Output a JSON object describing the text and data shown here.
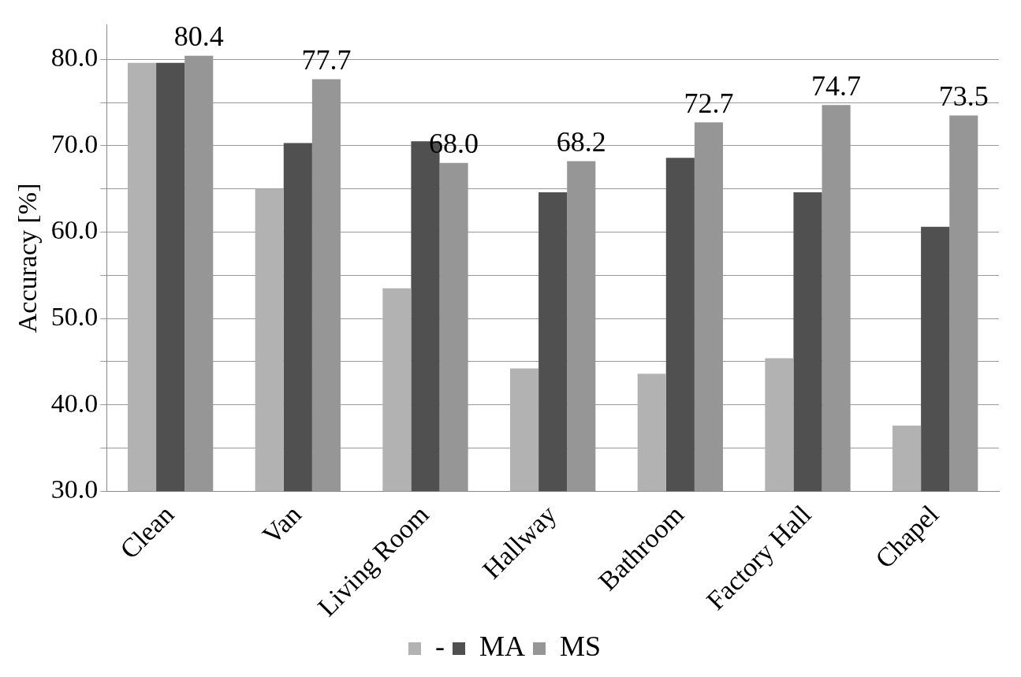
{
  "chart_data": {
    "type": "bar",
    "ylabel": "Accuracy [%]",
    "categories": [
      "Clean",
      "Van",
      "Living Room",
      "Hallway",
      "Bathroom",
      "Factory Hall",
      "Chapel"
    ],
    "series": [
      {
        "name": "-",
        "color": "#b2b2b2",
        "values": [
          79.6,
          65.0,
          53.5,
          44.2,
          43.6,
          45.4,
          37.6
        ]
      },
      {
        "name": "MA",
        "color": "#505050",
        "values": [
          79.6,
          70.3,
          70.5,
          64.6,
          68.6,
          64.6,
          60.6
        ]
      },
      {
        "name": "MS",
        "color": "#969696",
        "values": [
          80.4,
          77.7,
          68.0,
          68.2,
          72.7,
          74.7,
          73.5
        ],
        "value_labels": [
          "80.4",
          "77.7",
          "68.0",
          "68.2",
          "72.7",
          "74.7",
          "73.5"
        ]
      }
    ],
    "ylim": [
      30,
      84
    ],
    "yticks": [
      {
        "value": 30,
        "label": "30.0"
      },
      {
        "value": 35,
        "label": null
      },
      {
        "value": 40,
        "label": "40.0"
      },
      {
        "value": 45,
        "label": null
      },
      {
        "value": 50,
        "label": "50.0"
      },
      {
        "value": 55,
        "label": null
      },
      {
        "value": 60,
        "label": "60.0"
      },
      {
        "value": 65,
        "label": null
      },
      {
        "value": 70,
        "label": "70.0"
      },
      {
        "value": 75,
        "label": null
      },
      {
        "value": 80,
        "label": "80.0"
      }
    ],
    "grid": "y",
    "legend": "bottom"
  }
}
